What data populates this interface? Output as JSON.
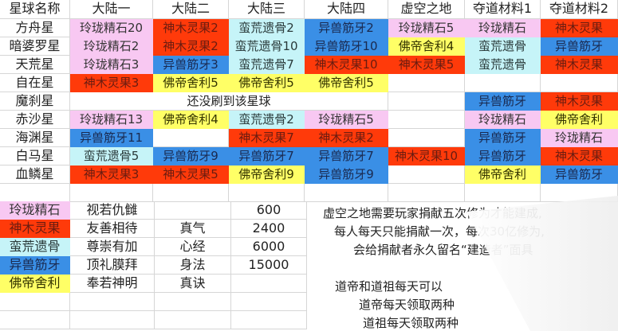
{
  "colors": {
    "P": "#f8c8f2",
    "R": "#ff3a0a",
    "C": "#c6f4f8",
    "B": "#3a8fe6",
    "Y": "#ffff66",
    "": "#ffffff"
  },
  "text_colors": {
    "P": "#333333",
    "R": "#6a1c10",
    "C": "#2a3a3a",
    "B": "#1a2a50",
    "Y": "#333300",
    "": "#222222"
  },
  "header": [
    "星球名称",
    "大陆一",
    "大陆二",
    "大陆三",
    "大陆四",
    "虚空之地",
    "夺道材料1",
    "夺道材料2"
  ],
  "rows": [
    {
      "name": "方舟星",
      "cells": [
        [
          "玲珑精石20",
          "P"
        ],
        [
          "神木灵果2",
          "R"
        ],
        [
          "蛮荒遗骨2",
          "C"
        ],
        [
          "异兽筋牙2",
          "B"
        ],
        [
          "玲珑精石5",
          "P"
        ],
        [
          "玲珑精石",
          "P"
        ],
        [
          "神木灵果",
          "R"
        ]
      ]
    },
    {
      "name": "暗婆罗星",
      "cells": [
        [
          "玲珑精石2",
          "P"
        ],
        [
          "神木灵果2",
          "R"
        ],
        [
          "蛮荒遗骨10",
          "C"
        ],
        [
          "异兽筋牙10",
          "B"
        ],
        [
          "佛帝舍利4",
          "Y"
        ],
        [
          "蛮荒遗骨",
          "C"
        ],
        [
          "异兽筋牙",
          "B"
        ]
      ]
    },
    {
      "name": "天荒星",
      "cells": [
        [
          "玲珑精石3",
          "P"
        ],
        [
          "异兽筋牙3",
          "B"
        ],
        [
          "蛮荒遗骨7",
          "C"
        ],
        [
          "神木灵果10",
          "R"
        ],
        [
          "神木灵果5",
          "R"
        ],
        [
          "蛮荒遗骨",
          "C"
        ],
        [
          "神木灵果",
          "R"
        ]
      ]
    },
    {
      "name": "自在星",
      "cells": [
        [
          "神木灵果3",
          "R"
        ],
        [
          "佛帝舍利5",
          "Y"
        ],
        [
          "佛帝舍利5",
          "Y"
        ],
        [
          "佛帝舍利5",
          "Y"
        ],
        [
          "",
          ""
        ],
        [
          "",
          ""
        ],
        [
          "",
          ""
        ]
      ]
    },
    {
      "name": "魔刹星",
      "merged": "还没刷到该星球",
      "cells": [
        [
          "",
          ""
        ],
        [
          "异兽筋牙",
          "B"
        ],
        [
          "神木灵果",
          "R"
        ]
      ]
    },
    {
      "name": "赤沙星",
      "cells": [
        [
          "玲珑精石13",
          "P"
        ],
        [
          "佛帝舍利4",
          "Y"
        ],
        [
          "蛮荒遗骨2",
          "C"
        ],
        [
          "玲珑精石5",
          "P"
        ],
        [
          "",
          ""
        ],
        [
          "玲珑精石",
          "P"
        ],
        [
          "佛帝舍利",
          "Y"
        ]
      ]
    },
    {
      "name": "海渊星",
      "cells": [
        [
          "异兽筋牙11",
          "B"
        ],
        [
          "",
          ""
        ],
        [
          "神木灵果7",
          "R"
        ],
        [
          "神木灵果2",
          "R"
        ],
        [
          "",
          ""
        ],
        [
          "异兽筋牙",
          "B"
        ],
        [
          "玲珑精石",
          "P"
        ]
      ]
    },
    {
      "name": "白马星",
      "cells": [
        [
          "蛮荒遗骨5",
          "C"
        ],
        [
          "异兽筋牙9",
          "B"
        ],
        [
          "异兽筋牙7",
          "B"
        ],
        [
          "异兽筋牙7",
          "B"
        ],
        [
          "神木灵果10",
          "R"
        ],
        [
          "异兽筋牙",
          "B"
        ],
        [
          "神木灵果",
          "R"
        ]
      ]
    },
    {
      "name": "血鳞星",
      "cells": [
        [
          "神木灵果3",
          "R"
        ],
        [
          "神木灵果5",
          "R"
        ],
        [
          "佛帝舍利9",
          "Y"
        ],
        [
          "异兽筋牙9",
          "B"
        ],
        [
          "",
          ""
        ],
        [
          "佛帝舍利",
          "Y"
        ],
        [
          "异兽筋牙",
          "B"
        ]
      ]
    }
  ],
  "legend": [
    {
      "material": "玲珑精石",
      "color": "P",
      "attitude": "视若仇雠",
      "skill": "",
      "value": "600"
    },
    {
      "material": "神木灵果",
      "color": "R",
      "attitude": "友善相待",
      "skill": "真气",
      "value": "2400"
    },
    {
      "material": "蛮荒遗骨",
      "color": "C",
      "attitude": "尊崇有加",
      "skill": "心经",
      "value": "6000"
    },
    {
      "material": "异兽筋牙",
      "color": "B",
      "attitude": "顶礼膜拜",
      "skill": "身法",
      "value": "15000"
    },
    {
      "material": "佛帝舍利",
      "color": "Y",
      "attitude": "奉若神明",
      "skill": "真诀",
      "value": ""
    }
  ],
  "notes": {
    "void_lines": [
      "虚空之地需要玩家捐献五次修为才能建成,",
      "每人每天只能捐献一次，每次30亿修为,",
      "会给捐献者永久留名“建造者”面具"
    ],
    "dao_lines": [
      "道帝和道祖每天可以",
      "道帝每天领取两种",
      "道祖每天领取两种"
    ]
  }
}
